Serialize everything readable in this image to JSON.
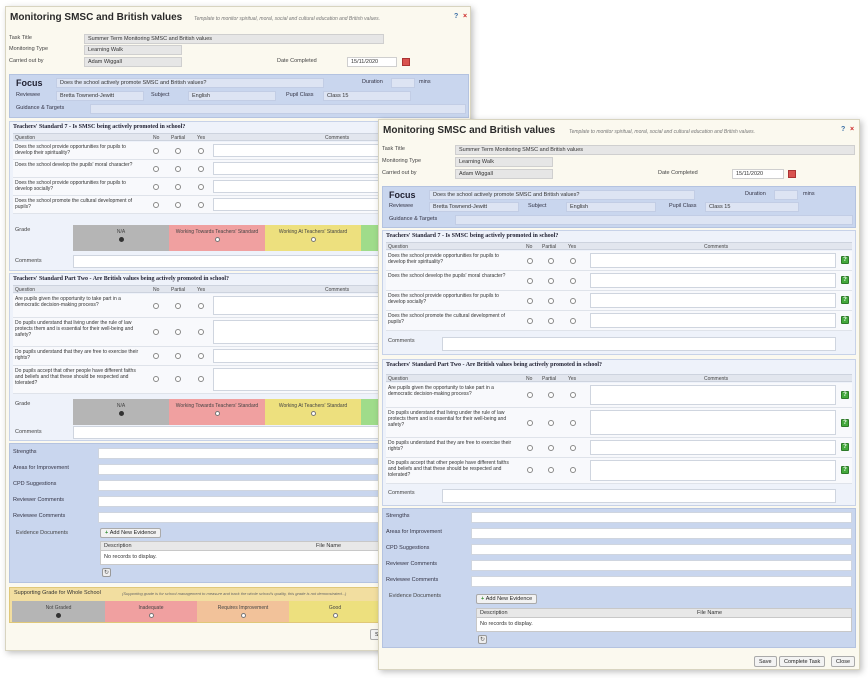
{
  "window": {
    "title": "Monitoring SMSC and British values",
    "subtitle": "Template to monitor spiritual, moral, social and cultural education and British values.",
    "help_icon": "?",
    "close_icon": "×"
  },
  "task": {
    "title_label": "Task Title",
    "title_value": "Summer Term Monitoring SMSC and British values",
    "type_label": "Monitoring Type",
    "type_value": "Learning Walk",
    "carried_label": "Carried out by",
    "carried_value": "Adam Wiggall",
    "date_label": "Date Completed",
    "date_value": "15/11/2020"
  },
  "focus": {
    "label": "Focus",
    "value": "Does the school actively promote SMSC and British values?",
    "duration_label": "Duration",
    "duration_value": "",
    "duration_unit": "mins",
    "reviewee_label": "Reviewee",
    "reviewee_value": "Bretta Townend-Jewitt",
    "subject_label": "Subject",
    "subject_value": "English",
    "class_label": "Pupil Class",
    "class_value": "Class 15",
    "guidance_label": "Guidance & Targets"
  },
  "standard7": {
    "heading": "Teachers' Standard 7 - Is SMSC being actively promoted in school?",
    "questions": [
      "Does the school provide opportunities for pupils to develop their spirituality?",
      "Does the school develop the pupils' moral character?",
      "Does the school provide opportunities for pupils to develop socially?",
      "Does the school promote the cultural development of pupils?"
    ]
  },
  "partTwo": {
    "heading": "Teachers' Standard Part Two - Are British values being actively promoted in school?",
    "questions": [
      "Are pupils given the opportunity to take part in a democratic decision-making process?",
      "Do pupils understand that living under the rule of law protects them and is essential for their well-being and safety?",
      "Do pupils understand that they are free to exercise their rights?",
      "Do pupils accept that other people have different faiths and beliefs and that these should be respected and tolerated?"
    ]
  },
  "table_headers": {
    "question": "Question",
    "no": "No",
    "partial": "Partial",
    "yes": "Yes",
    "comments": "Comments"
  },
  "grade": {
    "label": "Grade",
    "na": "N/A",
    "towards": "Working Towards Teachers' Standard",
    "at": "Working At Teachers' Standard"
  },
  "comments_label": "Comments",
  "comment_button": "?",
  "review": {
    "strengths": "Strengths",
    "improvement": "Areas for Improvement",
    "cpd": "CPD Suggestions",
    "reviewer": "Reviewer Comments",
    "reviewee": "Reviewee Comments"
  },
  "evidence": {
    "label": "Evidence Documents",
    "add_button": "Add New Evidence",
    "col_description": "Description",
    "col_filename": "File Name",
    "empty": "No records to display.",
    "refresh_icon": "↻"
  },
  "support": {
    "title": "Supporting Grade for Whole School",
    "note": "(Supporting grade is for school management to measure and track the whole school's quality, this grade is not demonstrated...)",
    "not_graded": "Not Graded",
    "inadequate": "Inadequate",
    "requires": "Requires Improvement",
    "good": "Good"
  },
  "footer": {
    "save": "Save",
    "complete": "Complete Task",
    "close": "Close",
    "back_partial": "S"
  },
  "colors": {
    "grade_na": "#b5b5b5",
    "grade_towards": "#f0a0a0",
    "grade_at": "#ede07e",
    "grade_exceeds": "#9fdc8a",
    "focus_blue": "#c9d6ee",
    "support_yellow": "#f2dea0"
  }
}
